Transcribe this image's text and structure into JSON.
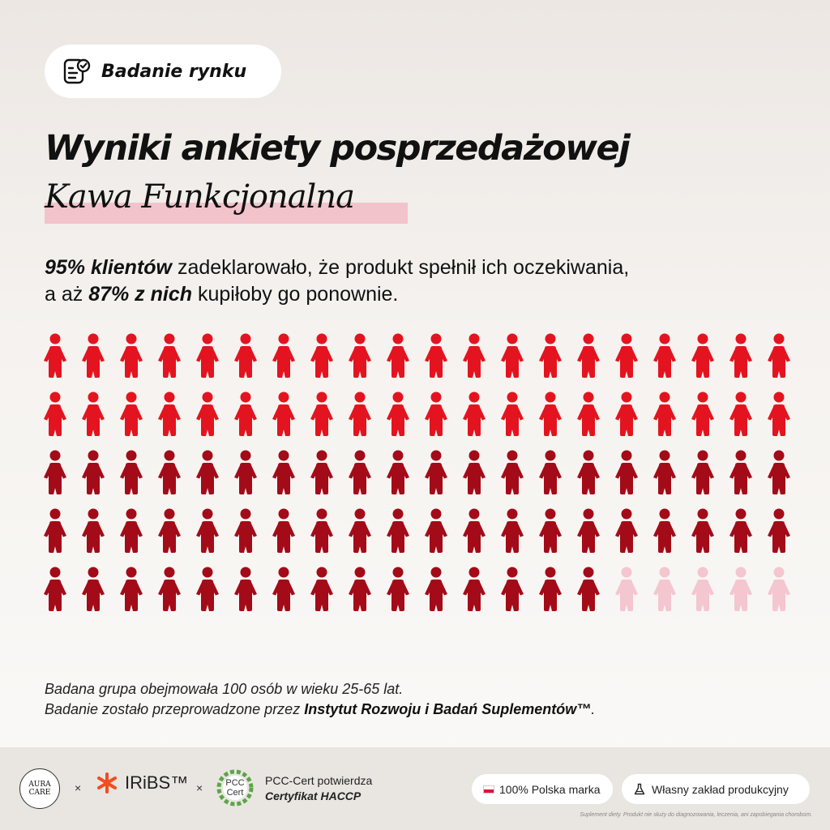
{
  "badge": {
    "label": "Badanie rynku",
    "icon": "survey-check-icon"
  },
  "title": "Wyniki ankiety posprzedażowej",
  "subtitle": "Kawa Funkcjonalna",
  "lead": {
    "stat1": "95% klientów",
    "text1": " zadeklarowało, że produkt spełnił ich oczekiwania,",
    "text2": "a aż ",
    "stat2": "87% z nich",
    "text3": " kupiłoby go ponownie."
  },
  "grid": {
    "total": 100,
    "columns": 20,
    "bright_red": 40,
    "dark_red": 55,
    "pink": 5,
    "colors": {
      "bright_red": "#e3141f",
      "dark_red": "#a30b18",
      "pink": "#f4c6cf"
    }
  },
  "note": {
    "line1": "Badana grupa obejmowała 100 osób w wieku 25-65 lat.",
    "line2_prefix": "Badanie zostało przeprowadzone przez ",
    "line2_bold": "Instytut Rozwoju i Badań Suplementów™",
    "line2_suffix": "."
  },
  "footer": {
    "aura_line1": "AURA",
    "aura_line2": "CARE",
    "times": "×",
    "iribs": "IRiBS™",
    "pcc_logo_line1": "PCC",
    "pcc_logo_line2": "Cert",
    "pcc_line1": "PCC-Cert potwierdza",
    "pcc_line2": "Certyfikat HACCP",
    "pill1": "100% Polska marka",
    "pill2": "Własny zakład produkcyjny",
    "disclaimer": "Suplement diety. Produkt nie służy do diagnozowania, leczenia, ani zapobiegania chorobom."
  }
}
